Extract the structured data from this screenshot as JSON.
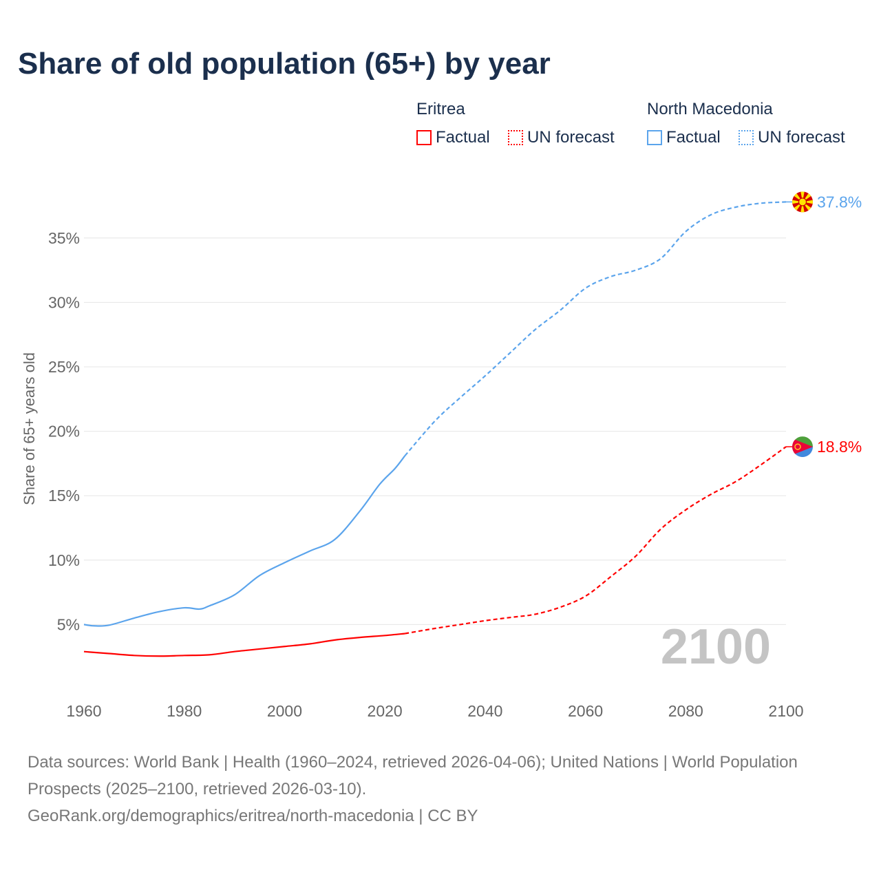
{
  "chart_data": {
    "type": "line",
    "title": "Share of old population (65+) by year",
    "ylabel": "Share of 65+ years old",
    "xlabel": "",
    "xlim": [
      1960,
      2100
    ],
    "ylim": [
      0,
      38
    ],
    "x_ticks": [
      "1960",
      "1980",
      "2000",
      "2020",
      "2040",
      "2060",
      "2080",
      "2100"
    ],
    "y_ticks": [
      {
        "value": 5,
        "label": "5%"
      },
      {
        "value": 10,
        "label": "10%"
      },
      {
        "value": 15,
        "label": "15%"
      },
      {
        "value": 20,
        "label": "20%"
      },
      {
        "value": 25,
        "label": "25%"
      },
      {
        "value": 30,
        "label": "30%"
      },
      {
        "value": 35,
        "label": "35%"
      }
    ],
    "year_watermark": "2100",
    "forecast_start": 2024,
    "series": [
      {
        "name": "Eritrea",
        "color": "#ff0000",
        "end_label": "18.8%",
        "flag": "eritrea-flag",
        "x": [
          1960,
          1965,
          1970,
          1975,
          1980,
          1985,
          1990,
          1995,
          2000,
          2005,
          2010,
          2015,
          2020,
          2024,
          2030,
          2035,
          2040,
          2045,
          2050,
          2055,
          2060,
          2065,
          2070,
          2075,
          2080,
          2085,
          2090,
          2095,
          2100
        ],
        "y": [
          2.9,
          2.75,
          2.6,
          2.55,
          2.6,
          2.65,
          2.9,
          3.1,
          3.3,
          3.5,
          3.8,
          4.0,
          4.15,
          4.3,
          4.7,
          5.0,
          5.3,
          5.55,
          5.8,
          6.35,
          7.2,
          8.7,
          10.3,
          12.4,
          13.9,
          15.1,
          16.1,
          17.4,
          18.8
        ]
      },
      {
        "name": "North Macedonia",
        "color": "#5ba4ec",
        "end_label": "37.8%",
        "flag": "north-macedonia-flag",
        "x": [
          1960,
          1962,
          1965,
          1970,
          1975,
          1980,
          1983,
          1985,
          1990,
          1995,
          2000,
          2005,
          2010,
          2015,
          2019,
          2022,
          2024,
          2030,
          2035,
          2040,
          2045,
          2050,
          2055,
          2060,
          2065,
          2070,
          2075,
          2080,
          2085,
          2090,
          2095,
          2100
        ],
        "y": [
          5.0,
          4.9,
          4.95,
          5.5,
          6.0,
          6.3,
          6.2,
          6.45,
          7.3,
          8.8,
          9.8,
          10.7,
          11.6,
          13.8,
          15.9,
          17.1,
          18.1,
          20.8,
          22.6,
          24.3,
          26.1,
          27.9,
          29.4,
          31.1,
          32.0,
          32.5,
          33.4,
          35.5,
          36.8,
          37.4,
          37.7,
          37.8
        ]
      }
    ]
  },
  "legend": {
    "groups": [
      {
        "country": "Eritrea",
        "factual": "Factual",
        "forecast": "UN forecast"
      },
      {
        "country": "North Macedonia",
        "factual": "Factual",
        "forecast": "UN forecast"
      }
    ]
  },
  "footer": {
    "line1": "Data sources: World Bank | Health (1960–2024, retrieved 2026-04-06); United Nations | World Population Prospects (2025–2100, retrieved 2026-03-10).",
    "line2": "GeoRank.org/demographics/eritrea/north-macedonia | CC BY"
  }
}
